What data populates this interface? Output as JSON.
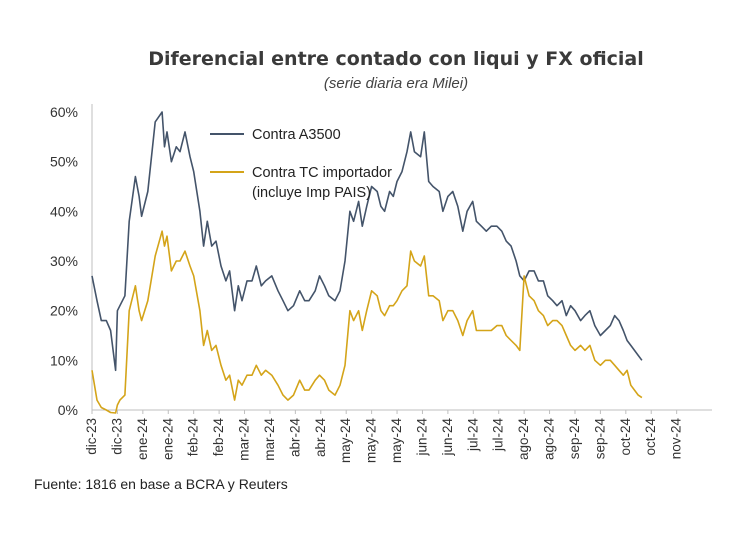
{
  "chart_data": {
    "type": "line",
    "title": "Diferencial entre contado con liqui y FX oficial",
    "subtitle": "(serie diaria era Milei)",
    "source": "Fuente: 1816 en base a BCRA y Reuters",
    "ylim": [
      0,
      60
    ],
    "yticks": [
      {
        "value": 0,
        "label": "0%"
      },
      {
        "value": 10,
        "label": "10%"
      },
      {
        "value": 20,
        "label": "20%"
      },
      {
        "value": 30,
        "label": "30%"
      },
      {
        "value": 40,
        "label": "40%"
      },
      {
        "value": 50,
        "label": "50%"
      },
      {
        "value": 60,
        "label": "60%"
      }
    ],
    "xlim": [
      0,
      100
    ],
    "xticks": [
      {
        "pos": 0,
        "label": "dic-23"
      },
      {
        "pos": 4.1,
        "label": "dic-23"
      },
      {
        "pos": 8.2,
        "label": "ene-24"
      },
      {
        "pos": 12.3,
        "label": "ene-24"
      },
      {
        "pos": 16.4,
        "label": "feb-24"
      },
      {
        "pos": 20.5,
        "label": "feb-24"
      },
      {
        "pos": 24.6,
        "label": "mar-24"
      },
      {
        "pos": 28.7,
        "label": "mar-24"
      },
      {
        "pos": 32.8,
        "label": "abr-24"
      },
      {
        "pos": 36.9,
        "label": "abr-24"
      },
      {
        "pos": 41.0,
        "label": "may-24"
      },
      {
        "pos": 45.1,
        "label": "may-24"
      },
      {
        "pos": 49.2,
        "label": "may-24"
      },
      {
        "pos": 53.3,
        "label": "jun-24"
      },
      {
        "pos": 57.4,
        "label": "jun-24"
      },
      {
        "pos": 61.5,
        "label": "jul-24"
      },
      {
        "pos": 65.6,
        "label": "jul-24"
      },
      {
        "pos": 69.7,
        "label": "ago-24"
      },
      {
        "pos": 73.8,
        "label": "ago-24"
      },
      {
        "pos": 77.9,
        "label": "sep-24"
      },
      {
        "pos": 82.0,
        "label": "sep-24"
      },
      {
        "pos": 86.1,
        "label": "oct-24"
      },
      {
        "pos": 90.2,
        "label": "oct-24"
      },
      {
        "pos": 94.3,
        "label": "nov-24"
      }
    ],
    "series": [
      {
        "name": "Contra A3500",
        "color": "#44546a",
        "points": [
          [
            0,
            27
          ],
          [
            0.8,
            22
          ],
          [
            1.5,
            18
          ],
          [
            2.3,
            18
          ],
          [
            3,
            16
          ],
          [
            3.8,
            8
          ],
          [
            4.1,
            20
          ],
          [
            4.5,
            21
          ],
          [
            5.3,
            23
          ],
          [
            6,
            38
          ],
          [
            7,
            47
          ],
          [
            7.6,
            43
          ],
          [
            8,
            39
          ],
          [
            9,
            44
          ],
          [
            10.2,
            58
          ],
          [
            11.3,
            60
          ],
          [
            11.7,
            53
          ],
          [
            12.1,
            56
          ],
          [
            12.8,
            50
          ],
          [
            13.6,
            53
          ],
          [
            14.2,
            52
          ],
          [
            15,
            56
          ],
          [
            15.8,
            51
          ],
          [
            16.4,
            48
          ],
          [
            17.4,
            40
          ],
          [
            18,
            33
          ],
          [
            18.6,
            38
          ],
          [
            19.3,
            33
          ],
          [
            20,
            34
          ],
          [
            20.8,
            29
          ],
          [
            21.6,
            26
          ],
          [
            22.2,
            28
          ],
          [
            23,
            20
          ],
          [
            23.6,
            25
          ],
          [
            24.2,
            22
          ],
          [
            25,
            26
          ],
          [
            25.8,
            26
          ],
          [
            26.5,
            29
          ],
          [
            27.3,
            25
          ],
          [
            28,
            26
          ],
          [
            29,
            27
          ],
          [
            30,
            24
          ],
          [
            30.8,
            22
          ],
          [
            31.6,
            20
          ],
          [
            32.5,
            21
          ],
          [
            33.5,
            24
          ],
          [
            34.3,
            22
          ],
          [
            35,
            22
          ],
          [
            36,
            24
          ],
          [
            36.7,
            27
          ],
          [
            37.5,
            25
          ],
          [
            38.2,
            23
          ],
          [
            39.2,
            22
          ],
          [
            40,
            24
          ],
          [
            40.8,
            30
          ],
          [
            41.6,
            40
          ],
          [
            42.2,
            38
          ],
          [
            43,
            42
          ],
          [
            43.6,
            37
          ],
          [
            44.3,
            41
          ],
          [
            45.1,
            45
          ],
          [
            46,
            44
          ],
          [
            46.6,
            41
          ],
          [
            47.2,
            40
          ],
          [
            48,
            44
          ],
          [
            48.6,
            43
          ],
          [
            49.2,
            46
          ],
          [
            50,
            48
          ],
          [
            50.8,
            52
          ],
          [
            51.4,
            56
          ],
          [
            52,
            52
          ],
          [
            53,
            51
          ],
          [
            53.6,
            56
          ],
          [
            54.3,
            46
          ],
          [
            55,
            45
          ],
          [
            56,
            44
          ],
          [
            56.6,
            40
          ],
          [
            57.4,
            43
          ],
          [
            58.2,
            44
          ],
          [
            59,
            41
          ],
          [
            59.8,
            36
          ],
          [
            60.5,
            40
          ],
          [
            61.4,
            42
          ],
          [
            62,
            38
          ],
          [
            62.8,
            37
          ],
          [
            63.6,
            36
          ],
          [
            64.4,
            37
          ],
          [
            65.3,
            37
          ],
          [
            66.1,
            36
          ],
          [
            66.8,
            34
          ],
          [
            67.6,
            33
          ],
          [
            68.4,
            30
          ],
          [
            69,
            27
          ],
          [
            69.7,
            26
          ],
          [
            70.5,
            28
          ],
          [
            71.3,
            28
          ],
          [
            72,
            26
          ],
          [
            72.8,
            26
          ],
          [
            73.5,
            23
          ],
          [
            74.3,
            22
          ],
          [
            75,
            21
          ],
          [
            75.8,
            22
          ],
          [
            76.5,
            19
          ],
          [
            77.2,
            21
          ],
          [
            77.9,
            20
          ],
          [
            78.8,
            18
          ],
          [
            79.5,
            19
          ],
          [
            80.3,
            20
          ],
          [
            81.1,
            17
          ],
          [
            82,
            15
          ],
          [
            82.8,
            16
          ],
          [
            83.6,
            17
          ],
          [
            84.3,
            19
          ],
          [
            85,
            18
          ],
          [
            85.7,
            16
          ],
          [
            86.3,
            14
          ],
          [
            86.9,
            13
          ],
          [
            87.5,
            12
          ],
          [
            88.1,
            11
          ],
          [
            88.7,
            10
          ]
        ]
      },
      {
        "name": "Contra TC importador (incluye Imp PAIS)",
        "color": "#d4a419",
        "points": [
          [
            0,
            8
          ],
          [
            0.8,
            2
          ],
          [
            1.5,
            0.5
          ],
          [
            2.3,
            0
          ],
          [
            3,
            -0.5
          ],
          [
            3.8,
            -1
          ],
          [
            4.1,
            1
          ],
          [
            4.5,
            2
          ],
          [
            5.3,
            3
          ],
          [
            6,
            20
          ],
          [
            7,
            25
          ],
          [
            7.6,
            20
          ],
          [
            8,
            18
          ],
          [
            9,
            22
          ],
          [
            10.2,
            31
          ],
          [
            11.3,
            36
          ],
          [
            11.7,
            33
          ],
          [
            12.1,
            35
          ],
          [
            12.8,
            28
          ],
          [
            13.6,
            30
          ],
          [
            14.2,
            30
          ],
          [
            15,
            32
          ],
          [
            15.8,
            29
          ],
          [
            16.4,
            27
          ],
          [
            17.4,
            20
          ],
          [
            18,
            13
          ],
          [
            18.6,
            16
          ],
          [
            19.3,
            12
          ],
          [
            20,
            13
          ],
          [
            20.8,
            9
          ],
          [
            21.6,
            6
          ],
          [
            22.2,
            7
          ],
          [
            23,
            2
          ],
          [
            23.6,
            6
          ],
          [
            24.2,
            5
          ],
          [
            25,
            7
          ],
          [
            25.8,
            7
          ],
          [
            26.5,
            9
          ],
          [
            27.3,
            7
          ],
          [
            28,
            8
          ],
          [
            29,
            7
          ],
          [
            30,
            5
          ],
          [
            30.8,
            3
          ],
          [
            31.6,
            2
          ],
          [
            32.5,
            3
          ],
          [
            33.5,
            6
          ],
          [
            34.3,
            4
          ],
          [
            35,
            4
          ],
          [
            36,
            6
          ],
          [
            36.7,
            7
          ],
          [
            37.5,
            6
          ],
          [
            38.2,
            4
          ],
          [
            39.2,
            3
          ],
          [
            40,
            5
          ],
          [
            40.8,
            9
          ],
          [
            41.6,
            20
          ],
          [
            42.2,
            18
          ],
          [
            43,
            20
          ],
          [
            43.6,
            16
          ],
          [
            44.3,
            20
          ],
          [
            45.1,
            24
          ],
          [
            46,
            23
          ],
          [
            46.6,
            20
          ],
          [
            47.2,
            19
          ],
          [
            48,
            21
          ],
          [
            48.6,
            21
          ],
          [
            49.2,
            22
          ],
          [
            50,
            24
          ],
          [
            50.8,
            25
          ],
          [
            51.4,
            32
          ],
          [
            52,
            30
          ],
          [
            53,
            29
          ],
          [
            53.6,
            31
          ],
          [
            54.3,
            23
          ],
          [
            55,
            23
          ],
          [
            56,
            22
          ],
          [
            56.6,
            18
          ],
          [
            57.4,
            20
          ],
          [
            58.2,
            20
          ],
          [
            59,
            18
          ],
          [
            59.8,
            15
          ],
          [
            60.5,
            18
          ],
          [
            61.4,
            20
          ],
          [
            62,
            16
          ],
          [
            62.8,
            16
          ],
          [
            63.6,
            16
          ],
          [
            64.4,
            16
          ],
          [
            65.3,
            17
          ],
          [
            66.1,
            17
          ],
          [
            66.8,
            15
          ],
          [
            67.6,
            14
          ],
          [
            68.4,
            13
          ],
          [
            69,
            12
          ],
          [
            69.7,
            27
          ],
          [
            70.5,
            23
          ],
          [
            71.3,
            22
          ],
          [
            72,
            20
          ],
          [
            72.8,
            19
          ],
          [
            73.5,
            17
          ],
          [
            74.3,
            18
          ],
          [
            75,
            18
          ],
          [
            75.8,
            17
          ],
          [
            76.5,
            15
          ],
          [
            77.2,
            13
          ],
          [
            77.9,
            12
          ],
          [
            78.8,
            13
          ],
          [
            79.5,
            12
          ],
          [
            80.3,
            13
          ],
          [
            81.1,
            10
          ],
          [
            82,
            9
          ],
          [
            82.8,
            10
          ],
          [
            83.6,
            10
          ],
          [
            84.3,
            9
          ],
          [
            85,
            8
          ],
          [
            85.7,
            7
          ],
          [
            86.3,
            8
          ],
          [
            86.9,
            5
          ],
          [
            87.5,
            4
          ],
          [
            88.1,
            3
          ],
          [
            88.7,
            2.5
          ]
        ]
      }
    ],
    "legend": {
      "position": "top-center",
      "entries": [
        {
          "lines": [
            "Contra A3500"
          ]
        },
        {
          "lines": [
            "Contra TC importador",
            "(incluye Imp PAIS)"
          ]
        }
      ]
    }
  }
}
